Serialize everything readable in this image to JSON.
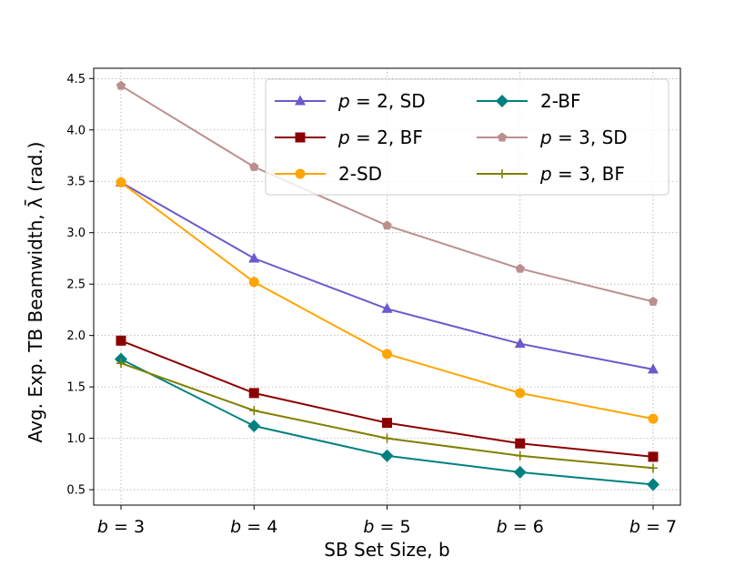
{
  "chart_data": {
    "type": "line",
    "title": "",
    "xlabel": "SB Set Size, b",
    "ylabel": "Avg. Exp. TB Beamwidth, λ̄ (rad.)",
    "categories": [
      "b = 3",
      "b = 4",
      "b = 5",
      "b = 6",
      "b = 7"
    ],
    "ylim": [
      0.35,
      4.6
    ],
    "yticks": [
      "0.5",
      "1.0",
      "1.5",
      "2.0",
      "2.5",
      "3.0",
      "3.5",
      "4.0",
      "4.5"
    ],
    "ytick_values": [
      0.5,
      1.0,
      1.5,
      2.0,
      2.5,
      3.0,
      3.5,
      4.0,
      4.5
    ],
    "grid": true,
    "legend_position": "top-right",
    "series": [
      {
        "name": "p = 2, SD",
        "color": "#6a5acd",
        "marker": "triangle",
        "values": [
          3.49,
          2.75,
          2.26,
          1.92,
          1.67
        ]
      },
      {
        "name": "p = 2, BF",
        "color": "#8b0000",
        "marker": "square",
        "values": [
          1.95,
          1.44,
          1.15,
          0.95,
          0.82
        ]
      },
      {
        "name": "2-SD",
        "color": "#ffa500",
        "marker": "circle",
        "values": [
          3.49,
          2.52,
          1.82,
          1.44,
          1.19
        ]
      },
      {
        "name": "2-BF",
        "color": "#008080",
        "marker": "diamond",
        "values": [
          1.77,
          1.12,
          0.83,
          0.67,
          0.55
        ]
      },
      {
        "name": "p = 3, SD",
        "color": "#bc8f8f",
        "marker": "pentagon",
        "values": [
          4.43,
          3.64,
          3.07,
          2.65,
          2.33
        ]
      },
      {
        "name": "p = 3, BF",
        "color": "#808000",
        "marker": "plus",
        "values": [
          1.73,
          1.27,
          1.0,
          0.83,
          0.71
        ]
      }
    ]
  }
}
